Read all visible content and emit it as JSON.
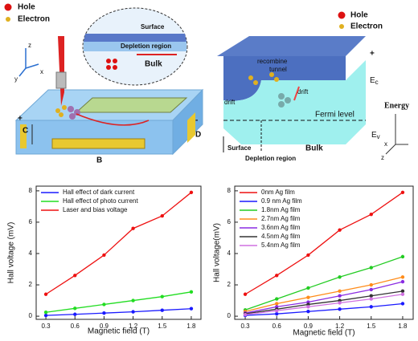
{
  "diagrams": {
    "left": {
      "hole": "Hole",
      "electron": "Electron",
      "axis_z": "z",
      "axis_y": "y",
      "axis_x": "x",
      "surface": "Surface",
      "depletion": "Depletion region",
      "bulk": "Bulk",
      "a": "A",
      "b": "B",
      "c": "C",
      "d": "D",
      "plus": "+",
      "minus": "-"
    },
    "right": {
      "hole": "Hole",
      "electron": "Electron",
      "recombine": "recombine",
      "tunnel": "tunnel",
      "drift_left": "drift",
      "drift_right": "drift",
      "fermi": "Fermi level",
      "ec": {
        "main": "E",
        "sub": "c"
      },
      "ev": {
        "main": "E",
        "sub": "v"
      },
      "energy": "Energy",
      "axis_x": "x",
      "axis_z": "z",
      "surface": "Surface",
      "depletion": "Depletion region",
      "bulk": "Bulk",
      "plus": "+",
      "minus": "-"
    }
  },
  "chart_data": [
    {
      "type": "line",
      "xlabel": "Magnetic field (T)",
      "ylabel": "Hall voltage (mV)",
      "x": [
        0.3,
        0.6,
        0.9,
        1.2,
        1.5,
        1.8
      ],
      "xlim": [
        0.2,
        1.9
      ],
      "xticks": [
        0.3,
        0.6,
        0.9,
        1.2,
        1.5,
        1.8
      ],
      "ylim": [
        -0.2,
        8.3
      ],
      "yticks": [
        0,
        2,
        4,
        6,
        8
      ],
      "legend": "upper left",
      "series": [
        {
          "name": "Hall effect of dark current",
          "color": "#1a1aff",
          "values": [
            0.05,
            0.12,
            0.2,
            0.28,
            0.38,
            0.48
          ]
        },
        {
          "name": "Hall effect of photo current",
          "color": "#22dd22",
          "values": [
            0.25,
            0.5,
            0.75,
            1.0,
            1.25,
            1.55
          ]
        },
        {
          "name": "Laser and bias voltage",
          "color": "#ee1111",
          "values": [
            1.4,
            2.6,
            3.9,
            5.6,
            6.4,
            7.9
          ]
        }
      ]
    },
    {
      "type": "line",
      "xlabel": "Magnetic field (T)",
      "ylabel": "Hall voltage(mV)",
      "x": [
        0.3,
        0.6,
        0.9,
        1.2,
        1.5,
        1.8
      ],
      "xlim": [
        0.2,
        1.9
      ],
      "xticks": [
        0.3,
        0.6,
        0.9,
        1.2,
        1.5,
        1.8
      ],
      "ylim": [
        -0.2,
        8.3
      ],
      "yticks": [
        0,
        2,
        4,
        6,
        8
      ],
      "legend": "upper left",
      "series": [
        {
          "name": "0nm Ag film",
          "color": "#ee1111",
          "values": [
            1.4,
            2.6,
            3.9,
            5.5,
            6.5,
            7.9
          ]
        },
        {
          "name": "0.9 nm Ag film",
          "color": "#1a1aff",
          "values": [
            0.05,
            0.15,
            0.3,
            0.45,
            0.6,
            0.8
          ]
        },
        {
          "name": "1.8nm Ag film",
          "color": "#22cc22",
          "values": [
            0.4,
            1.1,
            1.8,
            2.5,
            3.1,
            3.8
          ]
        },
        {
          "name": "2.7nm Ag film",
          "color": "#ff8c1a",
          "values": [
            0.3,
            0.8,
            1.2,
            1.6,
            2.0,
            2.5
          ]
        },
        {
          "name": "3.6nm Ag film",
          "color": "#8a2be2",
          "values": [
            0.2,
            0.6,
            0.9,
            1.3,
            1.7,
            2.2
          ]
        },
        {
          "name": "4.5nm Ag film",
          "color": "#333333",
          "values": [
            0.15,
            0.45,
            0.75,
            1.0,
            1.3,
            1.6
          ]
        },
        {
          "name": "5.4nm Ag film",
          "color": "#d070e0",
          "values": [
            0.1,
            0.35,
            0.6,
            0.85,
            1.1,
            1.4
          ]
        }
      ]
    }
  ]
}
